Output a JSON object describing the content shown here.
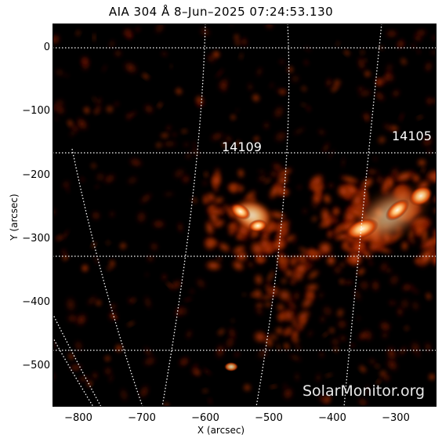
{
  "title": "AIA 304 Å  8–Jun–2025 07:24:53.130",
  "y_axis": {
    "label": "Y (arcsec)",
    "ticks": [
      "0",
      "−100",
      "−200",
      "−300",
      "−400",
      "−500"
    ]
  },
  "x_axis": {
    "label": "X (arcsec)",
    "ticks": [
      "−800",
      "−700",
      "−600",
      "−500",
      "−400",
      "−300"
    ]
  },
  "active_regions": [
    {
      "number": "14109",
      "x_arcsec": -545,
      "y_arcsec": -160
    },
    {
      "number": "14105",
      "x_arcsec": -270,
      "y_arcsec": -145
    }
  ],
  "watermark": "SolarMonitor.org",
  "colors": {
    "background": "#000000",
    "emission_dim": "#5a0d00",
    "emission_mid": "#c83200",
    "emission_bright": "#ff9a3c",
    "emission_peak": "#fff4dc",
    "grid": "#ffffff"
  }
}
